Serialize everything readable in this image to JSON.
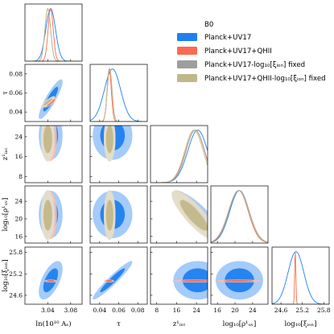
{
  "chart_data": {
    "type": "corner",
    "title": "",
    "params": [
      {
        "key": "lnAs",
        "label": "ln(10¹⁰ Aₛ)",
        "range": [
          3.0,
          3.1
        ],
        "ticks": [
          3.04,
          3.08
        ],
        "tick_labels": [
          "3.04",
          "3.08"
        ]
      },
      {
        "key": "tau",
        "label": "τ",
        "range": [
          0.03,
          0.09
        ],
        "ticks": [
          0.04,
          0.06,
          0.08
        ],
        "tick_labels": [
          "0.04",
          "0.06",
          "0.08"
        ]
      },
      {
        "key": "zint",
        "label": "z¹ᵢₙₜ",
        "range": [
          5.5,
          28.5
        ],
        "ticks": [
          8,
          16,
          24
        ],
        "tick_labels": [
          "8",
          "16",
          "24"
        ]
      },
      {
        "key": "rhoUV",
        "label": "log₁₀[ρ¹ᵤᵥ]",
        "range": [
          14.5,
          27.5
        ],
        "ticks": [
          16,
          20,
          24
        ],
        "tick_labels": [
          "16",
          "20",
          "24"
        ]
      },
      {
        "key": "xiion",
        "label": "log₁₀[ξᵢₒₙ]",
        "range": [
          24.35,
          25.95
        ],
        "ticks": [
          24.6,
          25.2,
          25.8
        ],
        "tick_labels": [
          "24.6",
          "25.2",
          "25.8"
        ]
      }
    ],
    "legend": {
      "title": "B0",
      "placement": "top-right",
      "entries": [
        {
          "label": "Planck+UV17",
          "color": "#1f7fef"
        },
        {
          "label": "Planck+UV17+QHII",
          "color": "#fb6a50"
        },
        {
          "label": "Planck+UV17-log₁₀[ξᵢₒₙ] fixed",
          "color": "#9e9e9e"
        },
        {
          "label": "Planck+UV17+QHII-log₁₀[ξᵢₒₙ] fixed",
          "color": "#c2b788"
        }
      ]
    },
    "series": [
      {
        "name": "Planck+UV17",
        "color": "#1f7fef",
        "mean": [
          3.045,
          0.0535,
          24.5,
          21.0,
          25.02
        ],
        "sd": [
          0.0085,
          0.0085,
          4.0,
          2.2,
          0.22
        ],
        "corr": [
          [
            0,
            1,
            0.88
          ],
          [
            0,
            4,
            0.6
          ],
          [
            1,
            4,
            0.95
          ],
          [
            2,
            3,
            -0.85
          ]
        ]
      },
      {
        "name": "Planck+UV17+QHII",
        "color": "#fb6a50",
        "mean": [
          3.045,
          0.05,
          23.5,
          20.8,
          25.0
        ],
        "sd": [
          0.0045,
          0.0022,
          3.8,
          2.2,
          0.017
        ],
        "corr": [
          [
            0,
            1,
            0.88
          ],
          [
            2,
            3,
            -0.85
          ]
        ]
      },
      {
        "name": "Planck+UV17-log₁₀[ξᵢₒₙ] fixed",
        "color": "#9e9e9e",
        "mean": [
          3.04,
          0.0505,
          23.5,
          20.9,
          null
        ],
        "sd": [
          0.005,
          0.0025,
          3.7,
          2.3,
          null
        ],
        "corr": [
          [
            0,
            1,
            0.88
          ],
          [
            2,
            3,
            -0.85
          ]
        ]
      },
      {
        "name": "Planck+UV17+QHII-log₁₀[ξᵢₒₙ] fixed",
        "color": "#c2b788",
        "mean": [
          3.04,
          0.0505,
          23.0,
          20.8,
          null
        ],
        "sd": [
          0.005,
          0.0025,
          3.7,
          2.3,
          null
        ],
        "corr": [
          [
            0,
            1,
            0.88
          ],
          [
            2,
            3,
            -0.85
          ]
        ]
      }
    ]
  }
}
